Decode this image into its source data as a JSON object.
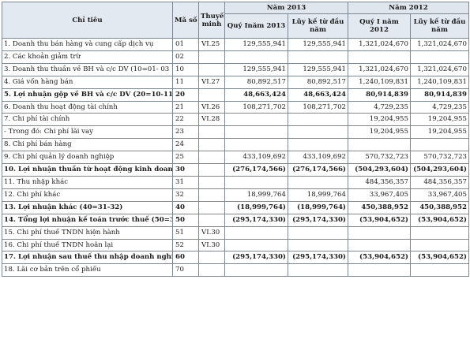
{
  "headers": {
    "item": "Chỉ tiêu",
    "code": "Mã số",
    "note": "Thuyết minh",
    "year_2013": "Năm 2013",
    "year_2012": "Năm 2012",
    "q1_2013": "Quý Inăm 2013",
    "ytd_2013": "Lũy kế từ đầu năm",
    "q1_2012": "Quý I năm 2012",
    "ytd_2012": "Lũy kế từ đầu năm"
  },
  "rows": [
    {
      "label": "1. Doanh thu bán hàng và cung cấp dịch vụ",
      "code": "01",
      "note": "VI.25",
      "q1_2013": "129,555,941",
      "ytd_2013": "129,555,941",
      "q1_2012": "1,321,024,670",
      "ytd_2012": "1,321,024,670",
      "bold": false
    },
    {
      "label": "2. Các khoản giảm trừ",
      "code": "02",
      "note": "",
      "q1_2013": "",
      "ytd_2013": "",
      "q1_2012": "",
      "ytd_2012": "",
      "bold": false
    },
    {
      "label": "3. Doanh thu thuần về BH và c/c DV (10=01- 03",
      "code": "10",
      "note": "",
      "q1_2013": "129,555,941",
      "ytd_2013": "129,555,941",
      "q1_2012": "1,321,024,670",
      "ytd_2012": "1,321,024,670",
      "bold": false
    },
    {
      "label": "4. Giá vốn hàng bán",
      "code": "11",
      "note": "VI.27",
      "q1_2013": "80,892,517",
      "ytd_2013": "80,892,517",
      "q1_2012": "1,240,109,831",
      "ytd_2012": "1,240,109,831",
      "bold": false
    },
    {
      "label": "5. Lợi nhuận gộp về BH và c/c DV (20=10-11)",
      "code": "20",
      "note": "",
      "q1_2013": "48,663,424",
      "ytd_2013": "48,663,424",
      "q1_2012": "80,914,839",
      "ytd_2012": "80,914,839",
      "bold": true
    },
    {
      "label": "6. Doanh thu hoạt động tài chính",
      "code": "21",
      "note": "VI.26",
      "q1_2013": "108,271,702",
      "ytd_2013": "108,271,702",
      "q1_2012": "4,729,235",
      "ytd_2012": "4,729,235",
      "bold": false
    },
    {
      "label": "7. Chi phí tài chính",
      "code": "22",
      "note": "VI.28",
      "q1_2013": "",
      "ytd_2013": "",
      "q1_2012": "19,204,955",
      "ytd_2012": "19,204,955",
      "bold": false
    },
    {
      "label": "- Trong đó: Chi phí lãi vay",
      "code": "23",
      "note": "",
      "q1_2013": "",
      "ytd_2013": "",
      "q1_2012": "19,204,955",
      "ytd_2012": "19,204,955",
      "bold": false
    },
    {
      "label": "8. Chi phí bán hàng",
      "code": "24",
      "note": "",
      "q1_2013": "",
      "ytd_2013": "",
      "q1_2012": "",
      "ytd_2012": "",
      "bold": false
    },
    {
      "label": "9. Chi phí quản lý doanh nghiệp",
      "code": "25",
      "note": "",
      "q1_2013": "433,109,692",
      "ytd_2013": "433,109,692",
      "q1_2012": "570,732,723",
      "ytd_2012": "570,732,723",
      "bold": false
    },
    {
      "label": "10. Lợi nhuận thuần từ hoạt động kinh doanh",
      "code": "30",
      "note": "",
      "q1_2013": "(276,174,566)",
      "ytd_2013": "(276,174,566)",
      "q1_2012": "(504,293,604)",
      "ytd_2012": "(504,293,604)",
      "bold": true
    },
    {
      "label": "11. Thu nhập khác",
      "code": "31",
      "note": "",
      "q1_2013": "",
      "ytd_2013": "",
      "q1_2012": "484,356,357",
      "ytd_2012": "484,356,357",
      "bold": false
    },
    {
      "label": "12. Chi phí khác",
      "code": "32",
      "note": "",
      "q1_2013": "18,999,764",
      "ytd_2013": "18,999,764",
      "q1_2012": "33,967,405",
      "ytd_2012": "33,967,405",
      "bold": false
    },
    {
      "label": "13. Lợi nhuận khác (40=31-32)",
      "code": "40",
      "note": "",
      "q1_2013": "(18,999,764)",
      "ytd_2013": "(18,999,764)",
      "q1_2012": "450,388,952",
      "ytd_2012": "450,388,952",
      "bold": true
    },
    {
      "label": "14. Tổng lợi nhuận kế toán trước thuế (50=30-",
      "code": "50",
      "note": "",
      "q1_2013": "(295,174,330)",
      "ytd_2013": "(295,174,330)",
      "q1_2012": "(53,904,652)",
      "ytd_2012": "(53,904,652)",
      "bold": true
    },
    {
      "label": "15. Chi phí thuế TNDN hiện hành",
      "code": "51",
      "note": "VI.30",
      "q1_2013": "",
      "ytd_2013": "",
      "q1_2012": "",
      "ytd_2012": "",
      "bold": false
    },
    {
      "label": "16. Chi phí thuế TNDN hoãn lại",
      "code": "52",
      "note": "VI.30",
      "q1_2013": "",
      "ytd_2013": "",
      "q1_2012": "",
      "ytd_2012": "",
      "bold": false
    },
    {
      "label": "17. Lợi nhuận sau thuế thu nhập doanh nghiệ",
      "code": "60",
      "note": "",
      "q1_2013": "(295,174,330)",
      "ytd_2013": "(295,174,330)",
      "q1_2012": "(53,904,652)",
      "ytd_2012": "(53,904,652)",
      "bold": true
    },
    {
      "label": "18. Lãi cơ bản trên cổ phiếu",
      "code": "70",
      "note": "",
      "q1_2013": "",
      "ytd_2013": "",
      "q1_2012": "",
      "ytd_2012": "",
      "bold": false
    }
  ]
}
